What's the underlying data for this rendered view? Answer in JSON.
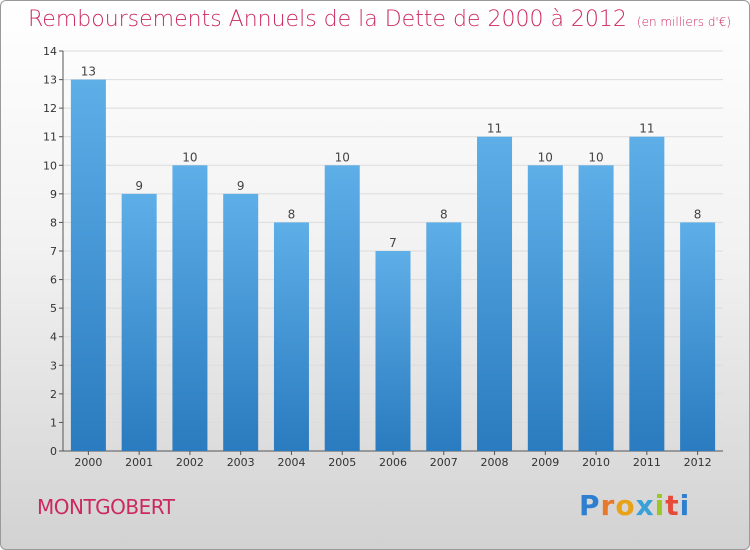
{
  "title": "Remboursements Annuels de la Dette de 2000 à 2012",
  "unit_note": "(en milliers d'€)",
  "town": "MONTGOBERT",
  "brand": {
    "letters": [
      "P",
      "r",
      "o",
      "x",
      "i",
      "t",
      "i"
    ],
    "colors": [
      "#2f7fd1",
      "#e8782a",
      "#e8a21a",
      "#3aa0d8",
      "#9bc623",
      "#e84a3a",
      "#2f7fd1"
    ]
  },
  "colors": {
    "accent": "#cc2a5e",
    "bar_top": "#5eaee8",
    "bar_bottom": "#2a7bbf"
  },
  "chart_data": {
    "type": "bar",
    "title": "Remboursements Annuels de la Dette de 2000 à 2012",
    "categories": [
      "2000",
      "2001",
      "2002",
      "2003",
      "2004",
      "2005",
      "2006",
      "2007",
      "2008",
      "2009",
      "2010",
      "2011",
      "2012"
    ],
    "values": [
      13,
      9,
      10,
      9,
      8,
      10,
      7,
      8,
      11,
      10,
      10,
      11,
      8
    ],
    "ylim": [
      0,
      14
    ],
    "yticks": [
      0,
      1,
      2,
      3,
      4,
      5,
      6,
      7,
      8,
      9,
      10,
      11,
      12,
      13,
      14
    ],
    "grid": true
  }
}
